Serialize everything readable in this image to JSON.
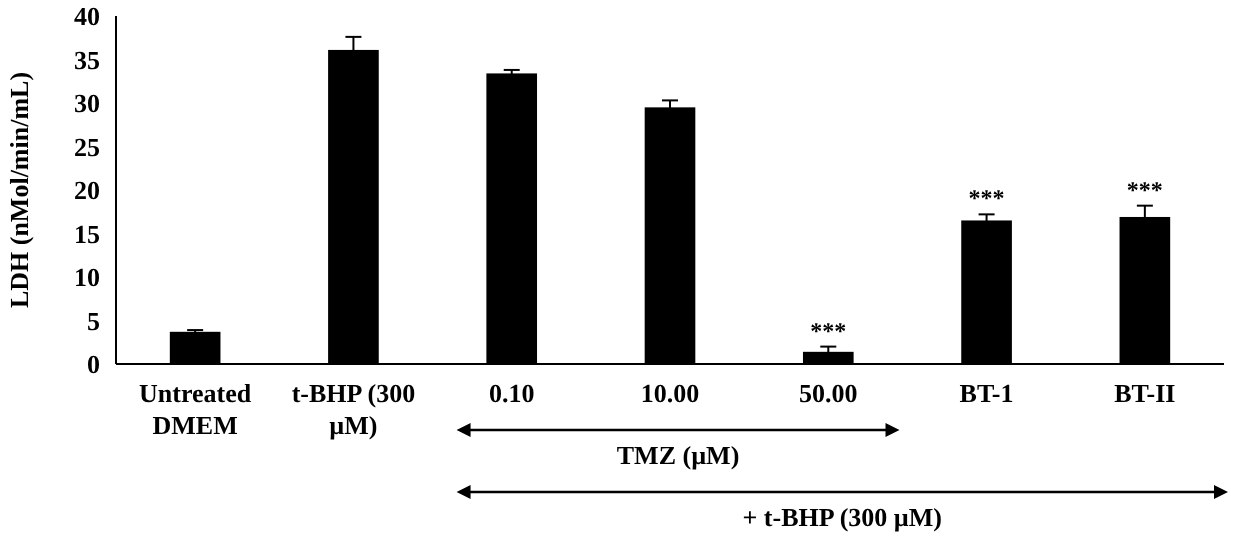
{
  "chart_data": {
    "type": "bar",
    "ylabel": "LDH (nMol/min/mL)",
    "categories": [
      "Untreated DMEM",
      "t-BHP (300 µM)",
      "0.10",
      "10.00",
      "50.00",
      "BT-1",
      "BT-II"
    ],
    "values": [
      3.7,
      36.1,
      33.4,
      29.5,
      1.4,
      16.5,
      16.9
    ],
    "errors": [
      0.2,
      1.5,
      0.4,
      0.8,
      0.6,
      0.7,
      1.3
    ],
    "color": "#000000",
    "ylim": [
      0,
      40
    ],
    "yticks": [
      0,
      5,
      10,
      15,
      20,
      25,
      30,
      35,
      40
    ],
    "grid": false,
    "annotations": [
      {
        "text": "***",
        "x": "50.00",
        "y": 2.0
      },
      {
        "text": "***",
        "x": "BT-1",
        "y": 17.2
      },
      {
        "text": "***",
        "x": "BT-II",
        "y": 18.2
      },
      "TMZ (µM)",
      "+ t-BHP (300 µM)"
    ]
  }
}
